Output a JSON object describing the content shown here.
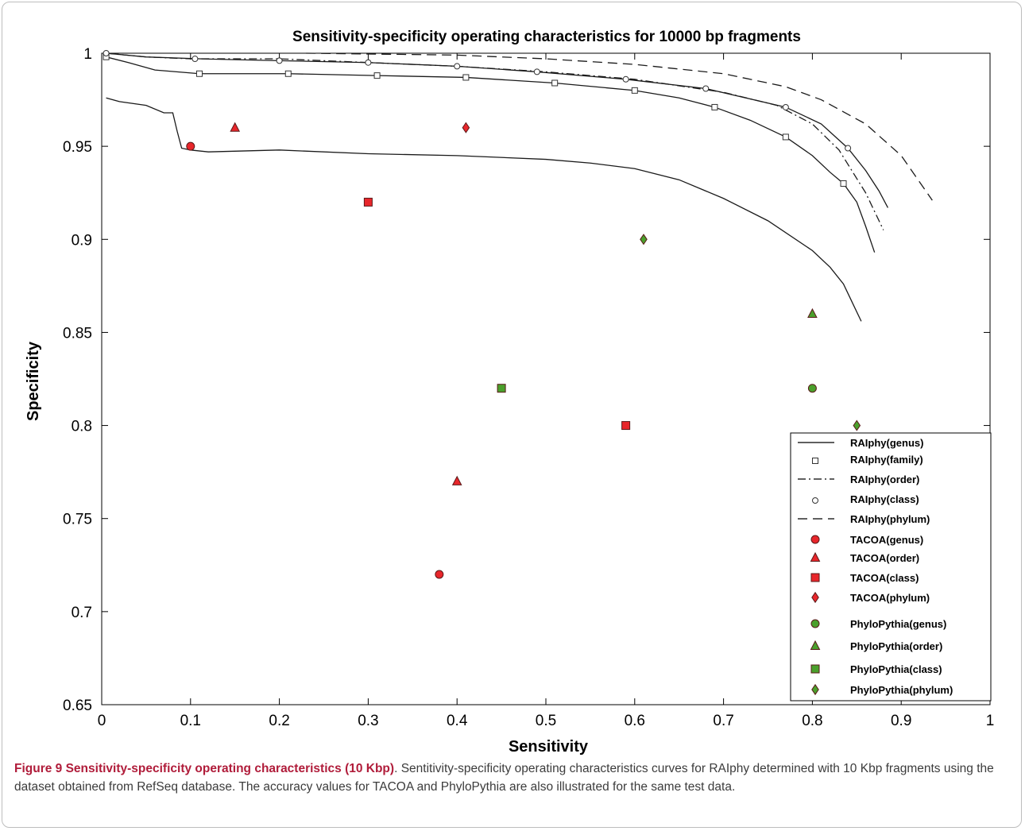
{
  "chart_data": {
    "type": "scatter",
    "title": "Sensitivity-specificity operating characteristics for 10000  bp fragments",
    "xlabel": "Sensitivity",
    "ylabel": "Specificity",
    "xlim": [
      0,
      1
    ],
    "ylim": [
      0.65,
      1
    ],
    "xticks": [
      "0",
      "0.1",
      "0.2",
      "0.3",
      "0.4",
      "0.5",
      "0.6",
      "0.7",
      "0.8",
      "0.9",
      "1"
    ],
    "yticks": [
      "0.65",
      "0.7",
      "0.75",
      "0.8",
      "0.85",
      "0.9",
      "0.95",
      "1"
    ],
    "grid": false,
    "legend_position": "bottom-right",
    "colors": {
      "tacoa": "#e8262b",
      "phylopythia": "#4aa02c",
      "curve": "#1a1a1a"
    },
    "series": [
      {
        "name": "RAIphy(genus)",
        "kind": "line",
        "dash": "solid",
        "marker": "none",
        "x": [
          0.005,
          0.02,
          0.05,
          0.07,
          0.08,
          0.085,
          0.09,
          0.1,
          0.12,
          0.2,
          0.3,
          0.4,
          0.5,
          0.55,
          0.6,
          0.65,
          0.7,
          0.75,
          0.8,
          0.82,
          0.835,
          0.845,
          0.855
        ],
        "y": [
          0.976,
          0.974,
          0.972,
          0.968,
          0.968,
          0.958,
          0.949,
          0.948,
          0.947,
          0.948,
          0.946,
          0.945,
          0.943,
          0.941,
          0.938,
          0.932,
          0.922,
          0.91,
          0.894,
          0.885,
          0.876,
          0.866,
          0.856
        ]
      },
      {
        "name": "RAIphy(family)",
        "kind": "line",
        "dash": "solid",
        "marker": "square",
        "x": [
          0.005,
          0.03,
          0.06,
          0.11,
          0.21,
          0.31,
          0.41,
          0.51,
          0.6,
          0.65,
          0.69,
          0.73,
          0.77,
          0.8,
          0.82,
          0.835,
          0.85,
          0.86,
          0.87
        ],
        "y": [
          0.998,
          0.995,
          0.991,
          0.989,
          0.989,
          0.988,
          0.987,
          0.984,
          0.98,
          0.976,
          0.971,
          0.964,
          0.955,
          0.945,
          0.936,
          0.93,
          0.92,
          0.907,
          0.893
        ],
        "marker_x": [
          0.005,
          0.11,
          0.21,
          0.31,
          0.41,
          0.51,
          0.6,
          0.69,
          0.77,
          0.835
        ],
        "marker_y": [
          0.998,
          0.989,
          0.989,
          0.988,
          0.987,
          0.984,
          0.98,
          0.971,
          0.955,
          0.93
        ]
      },
      {
        "name": "RAIphy(order)",
        "kind": "line",
        "dash": "dashdot",
        "marker": "none",
        "x": [
          0.005,
          0.05,
          0.1,
          0.2,
          0.3,
          0.4,
          0.5,
          0.6,
          0.7,
          0.76,
          0.8,
          0.83,
          0.86,
          0.88
        ],
        "y": [
          1.0,
          0.998,
          0.997,
          0.997,
          0.995,
          0.993,
          0.99,
          0.986,
          0.979,
          0.972,
          0.962,
          0.948,
          0.925,
          0.905
        ]
      },
      {
        "name": "RAIphy(class)",
        "kind": "line",
        "dash": "solid",
        "marker": "circle",
        "x": [
          0.005,
          0.05,
          0.11,
          0.2,
          0.3,
          0.4,
          0.49,
          0.59,
          0.68,
          0.77,
          0.81,
          0.84,
          0.86,
          0.875,
          0.885
        ],
        "y": [
          1.0,
          0.998,
          0.997,
          0.996,
          0.995,
          0.993,
          0.99,
          0.986,
          0.981,
          0.971,
          0.962,
          0.949,
          0.937,
          0.926,
          0.917
        ],
        "marker_x": [
          0.005,
          0.105,
          0.2,
          0.3,
          0.4,
          0.49,
          0.59,
          0.68,
          0.77,
          0.84
        ],
        "marker_y": [
          1.0,
          0.997,
          0.996,
          0.995,
          0.993,
          0.99,
          0.986,
          0.981,
          0.971,
          0.949
        ]
      },
      {
        "name": "RAIphy(phylum)",
        "kind": "line",
        "dash": "dashed",
        "marker": "none",
        "x": [
          0.23,
          0.4,
          0.5,
          0.6,
          0.7,
          0.77,
          0.81,
          0.86,
          0.9,
          0.935
        ],
        "y": [
          1.0,
          0.999,
          0.997,
          0.994,
          0.989,
          0.982,
          0.975,
          0.962,
          0.945,
          0.921
        ]
      },
      {
        "name": "TACOA(genus)",
        "kind": "point",
        "marker": "circle",
        "color": "#e8262b",
        "x": [
          0.1,
          0.38
        ],
        "y": [
          0.95,
          0.72
        ]
      },
      {
        "name": "TACOA(order)",
        "kind": "point",
        "marker": "triangle",
        "color": "#e8262b",
        "x": [
          0.15,
          0.4
        ],
        "y": [
          0.96,
          0.77
        ]
      },
      {
        "name": "TACOA(class)",
        "kind": "point",
        "marker": "square",
        "color": "#e8262b",
        "x": [
          0.3,
          0.59
        ],
        "y": [
          0.92,
          0.8
        ]
      },
      {
        "name": "TACOA(phylum)",
        "kind": "point",
        "marker": "diamond",
        "color": "#e8262b",
        "x": [
          0.41
        ],
        "y": [
          0.96
        ]
      },
      {
        "name": "PhyloPythia(genus)",
        "kind": "point",
        "marker": "circle",
        "color": "#4aa02c",
        "x": [
          0.8
        ],
        "y": [
          0.82
        ]
      },
      {
        "name": "PhyloPythia(order)",
        "kind": "point",
        "marker": "triangle",
        "color": "#4aa02c",
        "x": [
          0.8
        ],
        "y": [
          0.86
        ]
      },
      {
        "name": "PhyloPythia(class)",
        "kind": "point",
        "marker": "square",
        "color": "#4aa02c",
        "x": [
          0.45
        ],
        "y": [
          0.82
        ]
      },
      {
        "name": "PhyloPythia(phylum)",
        "kind": "point",
        "marker": "diamond",
        "color": "#4aa02c",
        "x": [
          0.61,
          0.85
        ],
        "y": [
          0.9,
          0.8
        ]
      }
    ]
  },
  "caption": {
    "label": "Figure 9 Sensitivity-specificity operating characteristics (10 Kbp)",
    "text": ". Sentitivity-specificity operating characteristics curves for RAIphy determined with 10 Kbp fragments using the dataset obtained from RefSeq database. The accuracy values for TACOA and PhyloPythia are also illustrated for the same test data."
  }
}
